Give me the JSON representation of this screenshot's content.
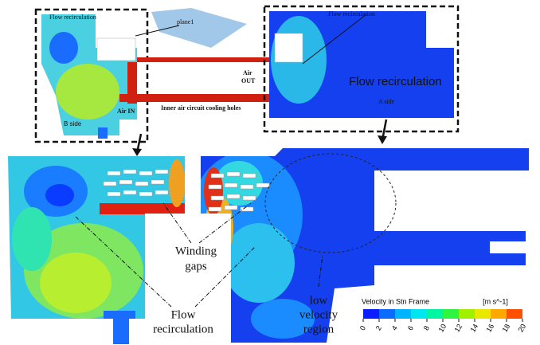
{
  "top_left_panel": {
    "flow_label": "Flow recirculation",
    "plane_label": "plane1",
    "air_out": [
      "Air",
      "OUT"
    ],
    "air_in": "Air IN",
    "cooling_holes": "Inner air circuit cooling holes",
    "side": "B side"
  },
  "top_right_panel": {
    "flow_label": "Flow recirculation",
    "flow_label_large": "Flow recirculation",
    "side": "A side"
  },
  "bottom_panel": {
    "winding_gaps": [
      "Winding",
      "gaps"
    ],
    "flow_recirculation": [
      "Flow",
      "recirculation"
    ],
    "low_velocity": [
      "low",
      "velocity",
      "region"
    ]
  },
  "colorbar": {
    "title": "Velocity in Stn Frame",
    "unit": "[m s^-1]",
    "ticks": [
      0,
      2,
      4,
      6,
      8,
      10,
      12,
      14,
      16,
      18,
      20
    ],
    "colors": [
      "#0a1eff",
      "#0a6cff",
      "#00b4ff",
      "#00e6f0",
      "#00f5a0",
      "#30f540",
      "#a0f000",
      "#e8e800",
      "#ffa800",
      "#ff5000"
    ]
  }
}
